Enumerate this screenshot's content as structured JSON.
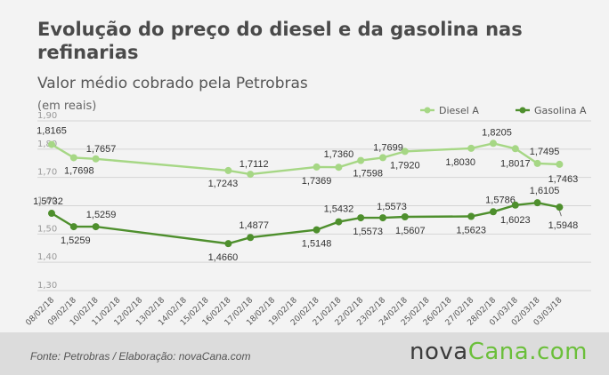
{
  "title": "Evolução do preço do diesel e da gasolina nas refinarias",
  "subtitle": "Valor médio cobrado pela Petrobras",
  "unit_label": "(em reais)",
  "footer": {
    "source": "Fonte:  Petrobras  / Elaboração:  novaCana.com",
    "brand_part1": "nova",
    "brand_part2": "Cana.com"
  },
  "colors": {
    "diesel": "#a6d785",
    "gasolina": "#4e8f2d",
    "grid": "#d5d5d5",
    "brand_green": "#6bbf3a"
  },
  "chart_data": {
    "type": "line",
    "title": "Evolução do preço do diesel e da gasolina nas refinarias",
    "subtitle": "Valor médio cobrado pela Petrobras",
    "ylabel": "(em reais)",
    "ylim": [
      1.3,
      1.9
    ],
    "yticks": [
      "1,90",
      "1,80",
      "1,70",
      "1,60",
      "1,50",
      "1,40",
      "1,30"
    ],
    "grid": true,
    "legend_position": "top-right",
    "categories": [
      "08/02/18",
      "09/02/18",
      "10/02/18",
      "11/02/18",
      "12/02/18",
      "13/02/18",
      "14/02/18",
      "15/02/18",
      "16/02/18",
      "17/02/18",
      "18/02/18",
      "19/02/18",
      "20/02/18",
      "21/02/18",
      "22/02/18",
      "23/02/18",
      "24/02/18",
      "25/02/18",
      "26/02/18",
      "27/02/18",
      "28/02/18",
      "01/03/18",
      "02/03/18",
      "03/03/18"
    ],
    "series": [
      {
        "name": "Diesel A",
        "points": [
          {
            "x": 0,
            "y": 1.8165,
            "label": "1,8165"
          },
          {
            "x": 1,
            "y": 1.7698,
            "label": "1,7698"
          },
          {
            "x": 2,
            "y": 1.7657,
            "label": "1,7657"
          },
          {
            "x": 8,
            "y": 1.7243,
            "label": "1,7243"
          },
          {
            "x": 9,
            "y": 1.7112,
            "label": "1,7112"
          },
          {
            "x": 12,
            "y": 1.7369,
            "label": "1,7369"
          },
          {
            "x": 13,
            "y": 1.736,
            "label": "1,7360"
          },
          {
            "x": 14,
            "y": 1.7598,
            "label": "1,7598"
          },
          {
            "x": 15,
            "y": 1.7699,
            "label": "1,7699"
          },
          {
            "x": 16,
            "y": 1.792,
            "label": "1,7920"
          },
          {
            "x": 19,
            "y": 1.803,
            "label": "1,8030"
          },
          {
            "x": 20,
            "y": 1.8205,
            "label": "1,8205"
          },
          {
            "x": 21,
            "y": 1.8017,
            "label": "1,8017"
          },
          {
            "x": 22,
            "y": 1.7495,
            "label": "1,7495"
          },
          {
            "x": 23,
            "y": 1.7463,
            "label": "1,7463"
          }
        ]
      },
      {
        "name": "Gasolina A",
        "points": [
          {
            "x": 0,
            "y": 1.5732,
            "label": "1,5732"
          },
          {
            "x": 1,
            "y": 1.5259,
            "label": "1,5259"
          },
          {
            "x": 2,
            "y": 1.5259,
            "label": "1,5259"
          },
          {
            "x": 8,
            "y": 1.466,
            "label": "1,4660"
          },
          {
            "x": 9,
            "y": 1.4877,
            "label": "1,4877"
          },
          {
            "x": 12,
            "y": 1.5148,
            "label": "1,5148"
          },
          {
            "x": 13,
            "y": 1.5432,
            "label": "1,5432"
          },
          {
            "x": 14,
            "y": 1.5573,
            "label": "1,5573"
          },
          {
            "x": 15,
            "y": 1.5573,
            "label": "1,5573"
          },
          {
            "x": 16,
            "y": 1.5607,
            "label": "1,5607"
          },
          {
            "x": 19,
            "y": 1.5623,
            "label": "1,5623"
          },
          {
            "x": 20,
            "y": 1.5786,
            "label": "1,5786"
          },
          {
            "x": 21,
            "y": 1.6023,
            "label": "1,6023"
          },
          {
            "x": 22,
            "y": 1.6105,
            "label": "1,6105"
          },
          {
            "x": 23,
            "y": 1.5948,
            "label": "1,5948"
          }
        ]
      }
    ]
  }
}
